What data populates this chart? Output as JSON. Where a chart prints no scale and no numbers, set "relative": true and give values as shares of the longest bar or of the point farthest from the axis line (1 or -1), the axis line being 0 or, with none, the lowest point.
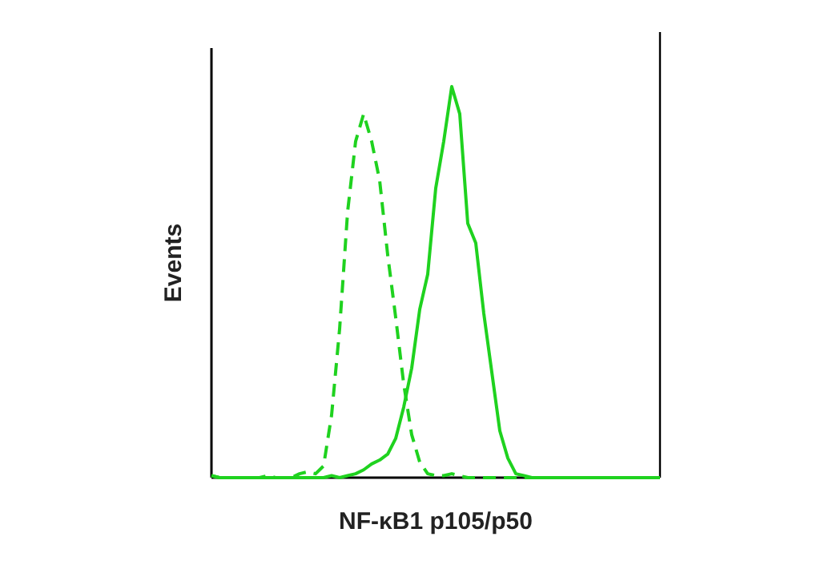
{
  "chart_data": {
    "type": "line",
    "xlabel": "NF-κB1 p105/p50",
    "ylabel": "Events",
    "relative": true,
    "marker": "none",
    "categories": [
      null,
      null,
      null,
      null,
      null,
      null,
      null,
      null,
      null,
      null,
      null,
      null,
      null,
      null,
      null,
      null,
      null,
      null,
      null,
      null,
      null,
      null,
      null,
      null,
      null,
      null,
      null,
      null,
      null,
      null,
      null,
      null,
      null,
      null,
      null,
      null,
      null,
      null,
      null,
      null,
      null,
      null,
      null,
      null,
      null,
      null,
      null,
      null,
      null,
      null,
      null,
      null,
      null,
      null,
      null,
      null,
      null
    ],
    "series": [
      {
        "color": "#1fd21f",
        "line_style": "dashed",
        "values": [
          0.005,
          0,
          0,
          0,
          0,
          0,
          0,
          0.005,
          0,
          0,
          0,
          0.01,
          0.015,
          0.01,
          0.03,
          0.16,
          0.38,
          0.68,
          0.86,
          0.93,
          0.86,
          0.76,
          0.57,
          0.41,
          0.24,
          0.11,
          0.04,
          0.01,
          0.005,
          0.005,
          0.01,
          0.005,
          0,
          0,
          0,
          0,
          0,
          0,
          0,
          0,
          0,
          0,
          0,
          0,
          0,
          0,
          0,
          0,
          0,
          0,
          0,
          0,
          0,
          0,
          0,
          0,
          0
        ]
      },
      {
        "color": "#1fd21f",
        "line_style": "solid",
        "values": [
          0.005,
          0,
          0,
          0,
          0,
          0,
          0,
          0,
          0,
          0,
          0,
          0,
          0,
          0,
          0,
          0.005,
          0,
          0.005,
          0.01,
          0.02,
          0.035,
          0.045,
          0.06,
          0.1,
          0.18,
          0.28,
          0.43,
          0.52,
          0.74,
          0.86,
          1,
          0.93,
          0.65,
          0.6,
          0.42,
          0.27,
          0.12,
          0.05,
          0.01,
          0.005,
          0,
          0,
          0,
          0,
          0,
          0,
          0,
          0,
          0,
          0,
          0,
          0,
          0,
          0,
          0,
          0,
          0
        ]
      }
    ]
  }
}
